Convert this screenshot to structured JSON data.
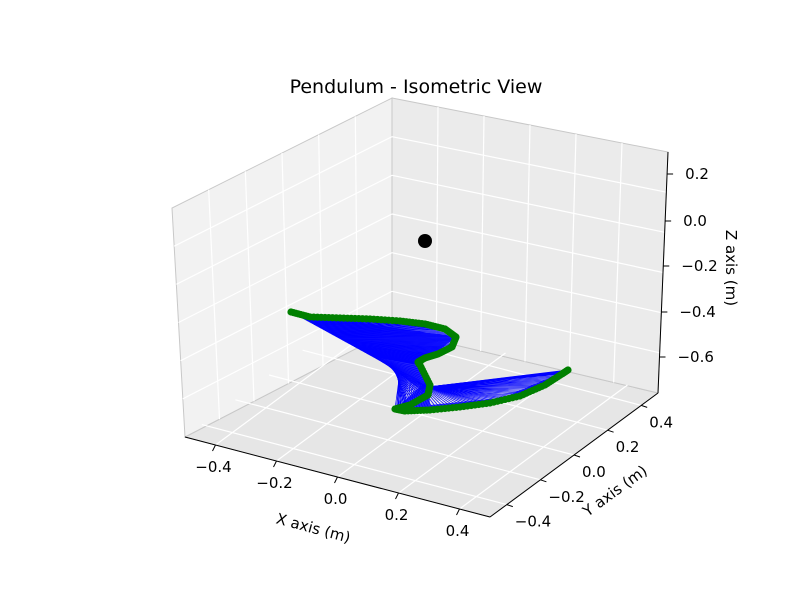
{
  "chart_data": {
    "type": "scatter",
    "title": "Pendulum - Isometric View",
    "projection": "3d",
    "view": "isometric",
    "xlabel": "X axis (m)",
    "ylabel": "Y axis (m)",
    "zlabel": "Z axis (m)",
    "x_ticks": [
      "−0.4",
      "−0.2",
      "0.0",
      "0.2",
      "0.4"
    ],
    "y_ticks": [
      "−0.4",
      "−0.2",
      "0.0",
      "0.2",
      "0.4"
    ],
    "z_ticks": [
      "−0.6",
      "−0.4",
      "−0.2",
      "0.0",
      "0.2"
    ],
    "grid": true,
    "series": [
      {
        "kind": "pivot-point",
        "color": "#000000",
        "points": [
          {
            "x": 0.0,
            "y": 0.0,
            "z": 0.0
          }
        ]
      },
      {
        "kind": "rod-lines",
        "color": "#0000ff",
        "description_note": "lines from pivot to bob positions"
      },
      {
        "kind": "bob-trajectory",
        "color": "#008000",
        "points": [
          {
            "x": -0.45,
            "y": -0.1,
            "z": -0.42
          },
          {
            "x": -0.2,
            "y": 0.05,
            "z": -0.45
          },
          {
            "x": 0.05,
            "y": 0.15,
            "z": -0.47
          },
          {
            "x": 0.15,
            "y": 0.18,
            "z": -0.5
          },
          {
            "x": 0.1,
            "y": 0.15,
            "z": -0.55
          },
          {
            "x": 0.0,
            "y": 0.05,
            "z": -0.68
          },
          {
            "x": -0.05,
            "y": -0.1,
            "z": -0.72
          },
          {
            "x": 0.05,
            "y": -0.05,
            "z": -0.72
          },
          {
            "x": 0.2,
            "y": 0.05,
            "z": -0.7
          },
          {
            "x": 0.35,
            "y": 0.15,
            "z": -0.66
          },
          {
            "x": 0.45,
            "y": 0.3,
            "z": -0.6
          }
        ]
      }
    ]
  }
}
